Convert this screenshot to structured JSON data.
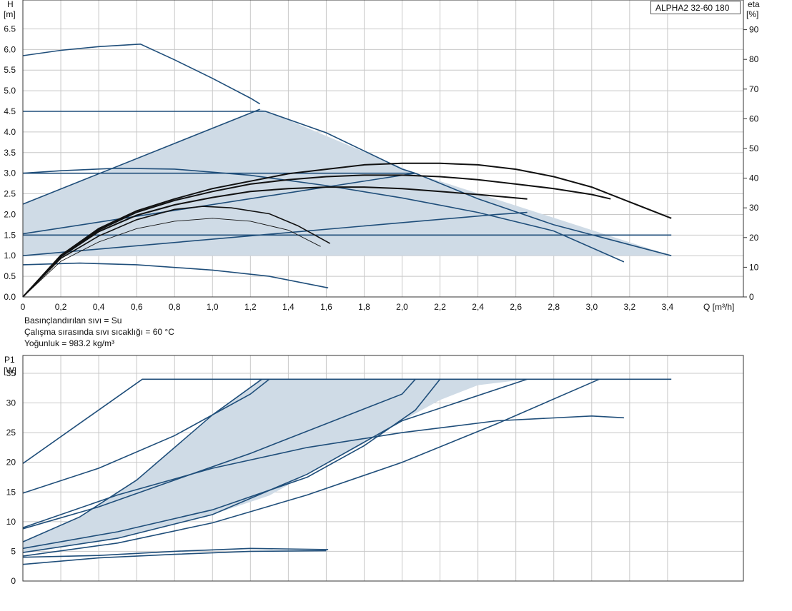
{
  "model_label": "ALPHA2 32-60 180",
  "fluid_info": [
    "Basınçlandırılan sıvı = Su",
    "Çalışma sırasında sıvı sıcaklığı = 60 °C",
    "Yoğunluk = 983.2 kg/m³"
  ],
  "colors": {
    "curve": "#1f4e7a",
    "efficiency": "#111111",
    "area_fill": "#cfdbe6",
    "grid": "#c8c8c8",
    "frame": "#333333"
  },
  "chart_data": [
    {
      "type": "line",
      "title": "",
      "ylabel_top": "H",
      "ylabel_unit": "[m]",
      "xlabel": "Q [m³/h]",
      "y2label_top": "eta",
      "y2label_unit": "[%]",
      "xlim": [
        0,
        3.8
      ],
      "ylim": [
        0,
        7.2
      ],
      "y2lim": [
        0,
        100
      ],
      "xticks": [
        "0",
        "0,2",
        "0,4",
        "0,6",
        "0,8",
        "1,0",
        "1,2",
        "1,4",
        "1,6",
        "1,8",
        "2,0",
        "2,2",
        "2,4",
        "2,6",
        "2,8",
        "3,0",
        "3,2",
        "3,4"
      ],
      "yticks": [
        "0.0",
        "0.5",
        "1.0",
        "1.5",
        "2.0",
        "2.5",
        "3.0",
        "3.5",
        "4.0",
        "4.5",
        "5.0",
        "5.5",
        "6.0",
        "6.5"
      ],
      "y2ticks": [
        "0",
        "10",
        "20",
        "30",
        "40",
        "50",
        "60",
        "70",
        "80",
        "90"
      ],
      "grid": true,
      "shaded_area": [
        [
          0,
          1.0
        ],
        [
          0,
          2.25
        ],
        [
          1.25,
          4.55
        ],
        [
          1.28,
          4.52
        ],
        [
          2.07,
          3.0
        ],
        [
          3.42,
          1.0
        ],
        [
          0,
          1.0
        ]
      ],
      "series": [
        {
          "values": [
            [
              0,
              5.85
            ],
            [
              0.2,
              5.98
            ],
            [
              0.4,
              6.07
            ],
            [
              0.62,
              6.13
            ],
            [
              0.8,
              5.75
            ],
            [
              1.0,
              5.3
            ],
            [
              1.2,
              4.82
            ],
            [
              1.25,
              4.68
            ]
          ]
        },
        {
          "values": [
            [
              0,
              4.5
            ],
            [
              1.25,
              4.5
            ],
            [
              1.28,
              4.5
            ],
            [
              1.6,
              3.98
            ],
            [
              2.0,
              3.1
            ],
            [
              2.07,
              3.0
            ],
            [
              2.4,
              2.38
            ],
            [
              2.8,
              1.75
            ],
            [
              3.42,
              1.0
            ]
          ]
        },
        {
          "values": [
            [
              0,
              2.25
            ],
            [
              1.25,
              4.55
            ]
          ]
        },
        {
          "values": [
            [
              0,
              3.0
            ],
            [
              0.2,
              3.06
            ],
            [
              0.5,
              3.12
            ],
            [
              0.8,
              3.1
            ],
            [
              1.2,
              2.95
            ],
            [
              1.6,
              2.7
            ],
            [
              2.0,
              2.4
            ],
            [
              2.4,
              2.05
            ],
            [
              2.8,
              1.6
            ],
            [
              3.17,
              0.85
            ]
          ]
        },
        {
          "values": [
            [
              0,
              3.0
            ],
            [
              2.07,
              3.0
            ]
          ]
        },
        {
          "values": [
            [
              0,
              1.53
            ],
            [
              2.07,
              3.0
            ]
          ]
        },
        {
          "values": [
            [
              0,
              1.5
            ],
            [
              3.42,
              1.5
            ]
          ]
        },
        {
          "values": [
            [
              0,
              1.0
            ],
            [
              2.5,
              2.0
            ],
            [
              2.66,
              2.05
            ]
          ]
        },
        {
          "values": [
            [
              0,
              0.78
            ],
            [
              0.3,
              0.82
            ],
            [
              0.6,
              0.78
            ],
            [
              1.0,
              0.65
            ],
            [
              1.3,
              0.5
            ],
            [
              1.61,
              0.22
            ]
          ]
        }
      ],
      "efficiency_series": [
        {
          "values": [
            [
              0,
              0
            ],
            [
              0.2,
              14
            ],
            [
              0.4,
              23
            ],
            [
              0.6,
              29
            ],
            [
              0.8,
              33
            ],
            [
              1.0,
              36.5
            ],
            [
              1.2,
              39
            ],
            [
              1.4,
              41.5
            ],
            [
              1.6,
              43
            ],
            [
              1.8,
              44.5
            ],
            [
              2.0,
              45
            ],
            [
              2.2,
              45
            ],
            [
              2.4,
              44.5
            ],
            [
              2.6,
              43
            ],
            [
              2.8,
              40.5
            ],
            [
              3.0,
              37
            ],
            [
              3.2,
              32
            ],
            [
              3.42,
              26.5
            ]
          ]
        },
        {
          "values": [
            [
              0,
              0
            ],
            [
              0.2,
              14
            ],
            [
              0.4,
              22.5
            ],
            [
              0.6,
              28.5
            ],
            [
              0.8,
              32.5
            ],
            [
              1.0,
              35.5
            ],
            [
              1.2,
              38
            ],
            [
              1.4,
              39.5
            ],
            [
              1.6,
              40.5
            ],
            [
              1.8,
              41
            ],
            [
              2.0,
              41
            ],
            [
              2.2,
              40.5
            ],
            [
              2.4,
              39.5
            ],
            [
              2.6,
              38
            ],
            [
              2.8,
              36.5
            ],
            [
              3.0,
              34.5
            ],
            [
              3.1,
              33
            ]
          ]
        },
        {
          "values": [
            [
              0,
              0
            ],
            [
              0.2,
              13.5
            ],
            [
              0.4,
              22
            ],
            [
              0.6,
              27.5
            ],
            [
              0.8,
              31
            ],
            [
              1.0,
              33.5
            ],
            [
              1.2,
              35.5
            ],
            [
              1.4,
              36.5
            ],
            [
              1.6,
              37
            ],
            [
              1.8,
              37
            ],
            [
              2.0,
              36.5
            ],
            [
              2.2,
              35.5
            ],
            [
              2.4,
              34.5
            ],
            [
              2.66,
              33
            ]
          ]
        },
        {
          "values": [
            [
              0,
              0
            ],
            [
              0.2,
              13
            ],
            [
              0.4,
              20.5
            ],
            [
              0.6,
              26
            ],
            [
              0.8,
              29.5
            ],
            [
              0.95,
              30.5
            ],
            [
              1.1,
              30
            ],
            [
              1.3,
              28
            ],
            [
              1.45,
              24
            ],
            [
              1.62,
              18
            ]
          ]
        },
        {
          "values": [
            [
              0,
              0
            ],
            [
              0.2,
              12
            ],
            [
              0.4,
              18.5
            ],
            [
              0.6,
              23
            ],
            [
              0.8,
              25.5
            ],
            [
              1.0,
              26.5
            ],
            [
              1.2,
              25.5
            ],
            [
              1.4,
              22.5
            ],
            [
              1.57,
              17
            ]
          ]
        }
      ]
    },
    {
      "type": "line",
      "title": "",
      "ylabel_top": "P1",
      "ylabel_unit": "[W]",
      "xlim": [
        0,
        3.8
      ],
      "ylim": [
        0,
        38
      ],
      "yticks": [
        "0",
        "5",
        "10",
        "15",
        "20",
        "25",
        "30",
        "35"
      ],
      "grid": true,
      "shaded_area": [
        [
          0,
          4.8
        ],
        [
          0.5,
          7.2
        ],
        [
          1.0,
          11.2
        ],
        [
          1.3,
          14.4
        ],
        [
          1.5,
          18
        ],
        [
          1.8,
          23.2
        ],
        [
          2.0,
          27
        ],
        [
          2.2,
          30.5
        ],
        [
          2.4,
          33
        ],
        [
          2.66,
          34
        ],
        [
          1.26,
          34
        ],
        [
          1.0,
          28
        ],
        [
          0.6,
          17
        ],
        [
          0.3,
          10.8
        ],
        [
          0,
          6.6
        ]
      ],
      "series": [
        {
          "values": [
            [
              0,
              19.8
            ],
            [
              0.63,
              34
            ],
            [
              3.42,
              34
            ]
          ]
        },
        {
          "values": [
            [
              0,
              14.8
            ],
            [
              0.4,
              19
            ],
            [
              0.8,
              24.5
            ],
            [
              1.2,
              31.5
            ],
            [
              1.3,
              34
            ]
          ]
        },
        {
          "values": [
            [
              0,
              8.8
            ],
            [
              0.4,
              12.5
            ],
            [
              0.8,
              17
            ],
            [
              1.2,
              21.5
            ],
            [
              1.6,
              26.5
            ],
            [
              2.0,
              31.5
            ],
            [
              2.07,
              34
            ]
          ]
        },
        {
          "values": [
            [
              0,
              6.6
            ],
            [
              0.3,
              10.8
            ],
            [
              0.6,
              17
            ],
            [
              1.0,
              28
            ],
            [
              1.26,
              34
            ]
          ]
        },
        {
          "values": [
            [
              0,
              9.0
            ],
            [
              0.5,
              14.5
            ],
            [
              1.0,
              19
            ],
            [
              1.5,
              22.5
            ],
            [
              2.0,
              25
            ],
            [
              2.5,
              27
            ],
            [
              3.0,
              27.8
            ],
            [
              3.17,
              27.5
            ]
          ]
        },
        {
          "values": [
            [
              0,
              5.5
            ],
            [
              0.5,
              8.3
            ],
            [
              1.0,
              12
            ],
            [
              1.5,
              17.5
            ],
            [
              1.8,
              22.8
            ],
            [
              2.07,
              28.8
            ],
            [
              2.2,
              34
            ]
          ]
        },
        {
          "values": [
            [
              0,
              4.8
            ],
            [
              0.5,
              7.2
            ],
            [
              1.0,
              11.2
            ],
            [
              1.5,
              18
            ],
            [
              2.0,
              27
            ],
            [
              2.66,
              34
            ]
          ]
        },
        {
          "values": [
            [
              0,
              4.2
            ],
            [
              0.5,
              6.4
            ],
            [
              1.0,
              9.8
            ],
            [
              1.5,
              14.5
            ],
            [
              2.0,
              20
            ],
            [
              2.5,
              26.5
            ],
            [
              3.04,
              34
            ]
          ]
        },
        {
          "values": [
            [
              0,
              2.8
            ],
            [
              0.4,
              3.9
            ],
            [
              0.8,
              4.5
            ],
            [
              1.2,
              5.0
            ],
            [
              1.6,
              5.1
            ]
          ]
        },
        {
          "values": [
            [
              0,
              4.0
            ],
            [
              0.4,
              4.3
            ],
            [
              0.8,
              5.0
            ],
            [
              1.2,
              5.5
            ],
            [
              1.61,
              5.3
            ]
          ]
        }
      ]
    }
  ]
}
